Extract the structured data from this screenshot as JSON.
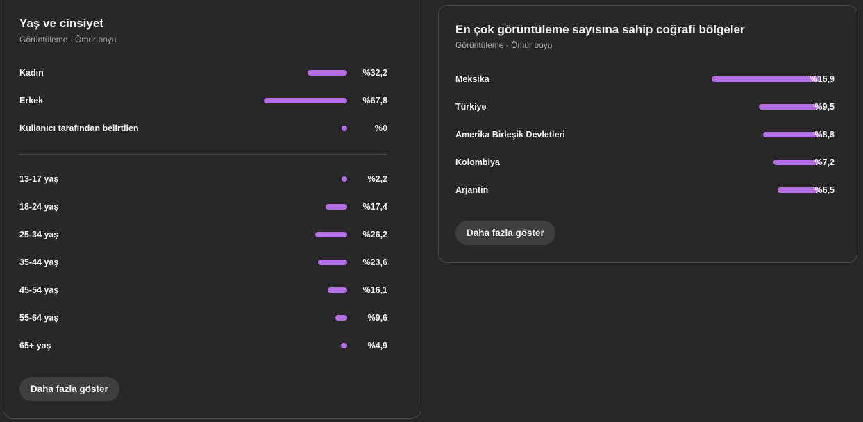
{
  "age_gender": {
    "title": "Yaş ve cinsiyet",
    "subtitle": "Görüntüleme · Ömür boyu",
    "gender": [
      {
        "label": "Kadın",
        "value": "%32,2",
        "pct": 32.2
      },
      {
        "label": "Erkek",
        "value": "%67,8",
        "pct": 67.8
      },
      {
        "label": "Kullanıcı tarafından belirtilen",
        "value": "%0",
        "pct": 0
      }
    ],
    "age": [
      {
        "label": "13-17 yaş",
        "value": "%2,2",
        "pct": 2.2
      },
      {
        "label": "18-24 yaş",
        "value": "%17,4",
        "pct": 17.4
      },
      {
        "label": "25-34 yaş",
        "value": "%26,2",
        "pct": 26.2
      },
      {
        "label": "35-44 yaş",
        "value": "%23,6",
        "pct": 23.6
      },
      {
        "label": "45-54 yaş",
        "value": "%16,1",
        "pct": 16.1
      },
      {
        "label": "55-64 yaş",
        "value": "%9,6",
        "pct": 9.6
      },
      {
        "label": "65+ yaş",
        "value": "%4,9",
        "pct": 4.9
      }
    ],
    "show_more_label": "Daha fazla göster"
  },
  "geography": {
    "title": "En çok görüntüleme sayısına sahip coğrafi bölgeler",
    "subtitle": "Görüntüleme · Ömür boyu",
    "regions": [
      {
        "label": "Meksika",
        "value": "%16,9",
        "pct": 16.9
      },
      {
        "label": "Türkiye",
        "value": "%9,5",
        "pct": 9.5
      },
      {
        "label": "Amerika Birleşik Devletleri",
        "value": "%8,8",
        "pct": 8.8
      },
      {
        "label": "Kolombiya",
        "value": "%7,2",
        "pct": 7.2
      },
      {
        "label": "Arjantin",
        "value": "%6,5",
        "pct": 6.5
      }
    ],
    "show_more_label": "Daha fazla göster"
  },
  "colors": {
    "background": "#282828",
    "card_border": "#4a4a4a",
    "bar": "#b56ee6",
    "button_bg": "#3f3f3f",
    "text_primary": "#f1f1f1",
    "text_secondary": "#aaaaaa"
  }
}
